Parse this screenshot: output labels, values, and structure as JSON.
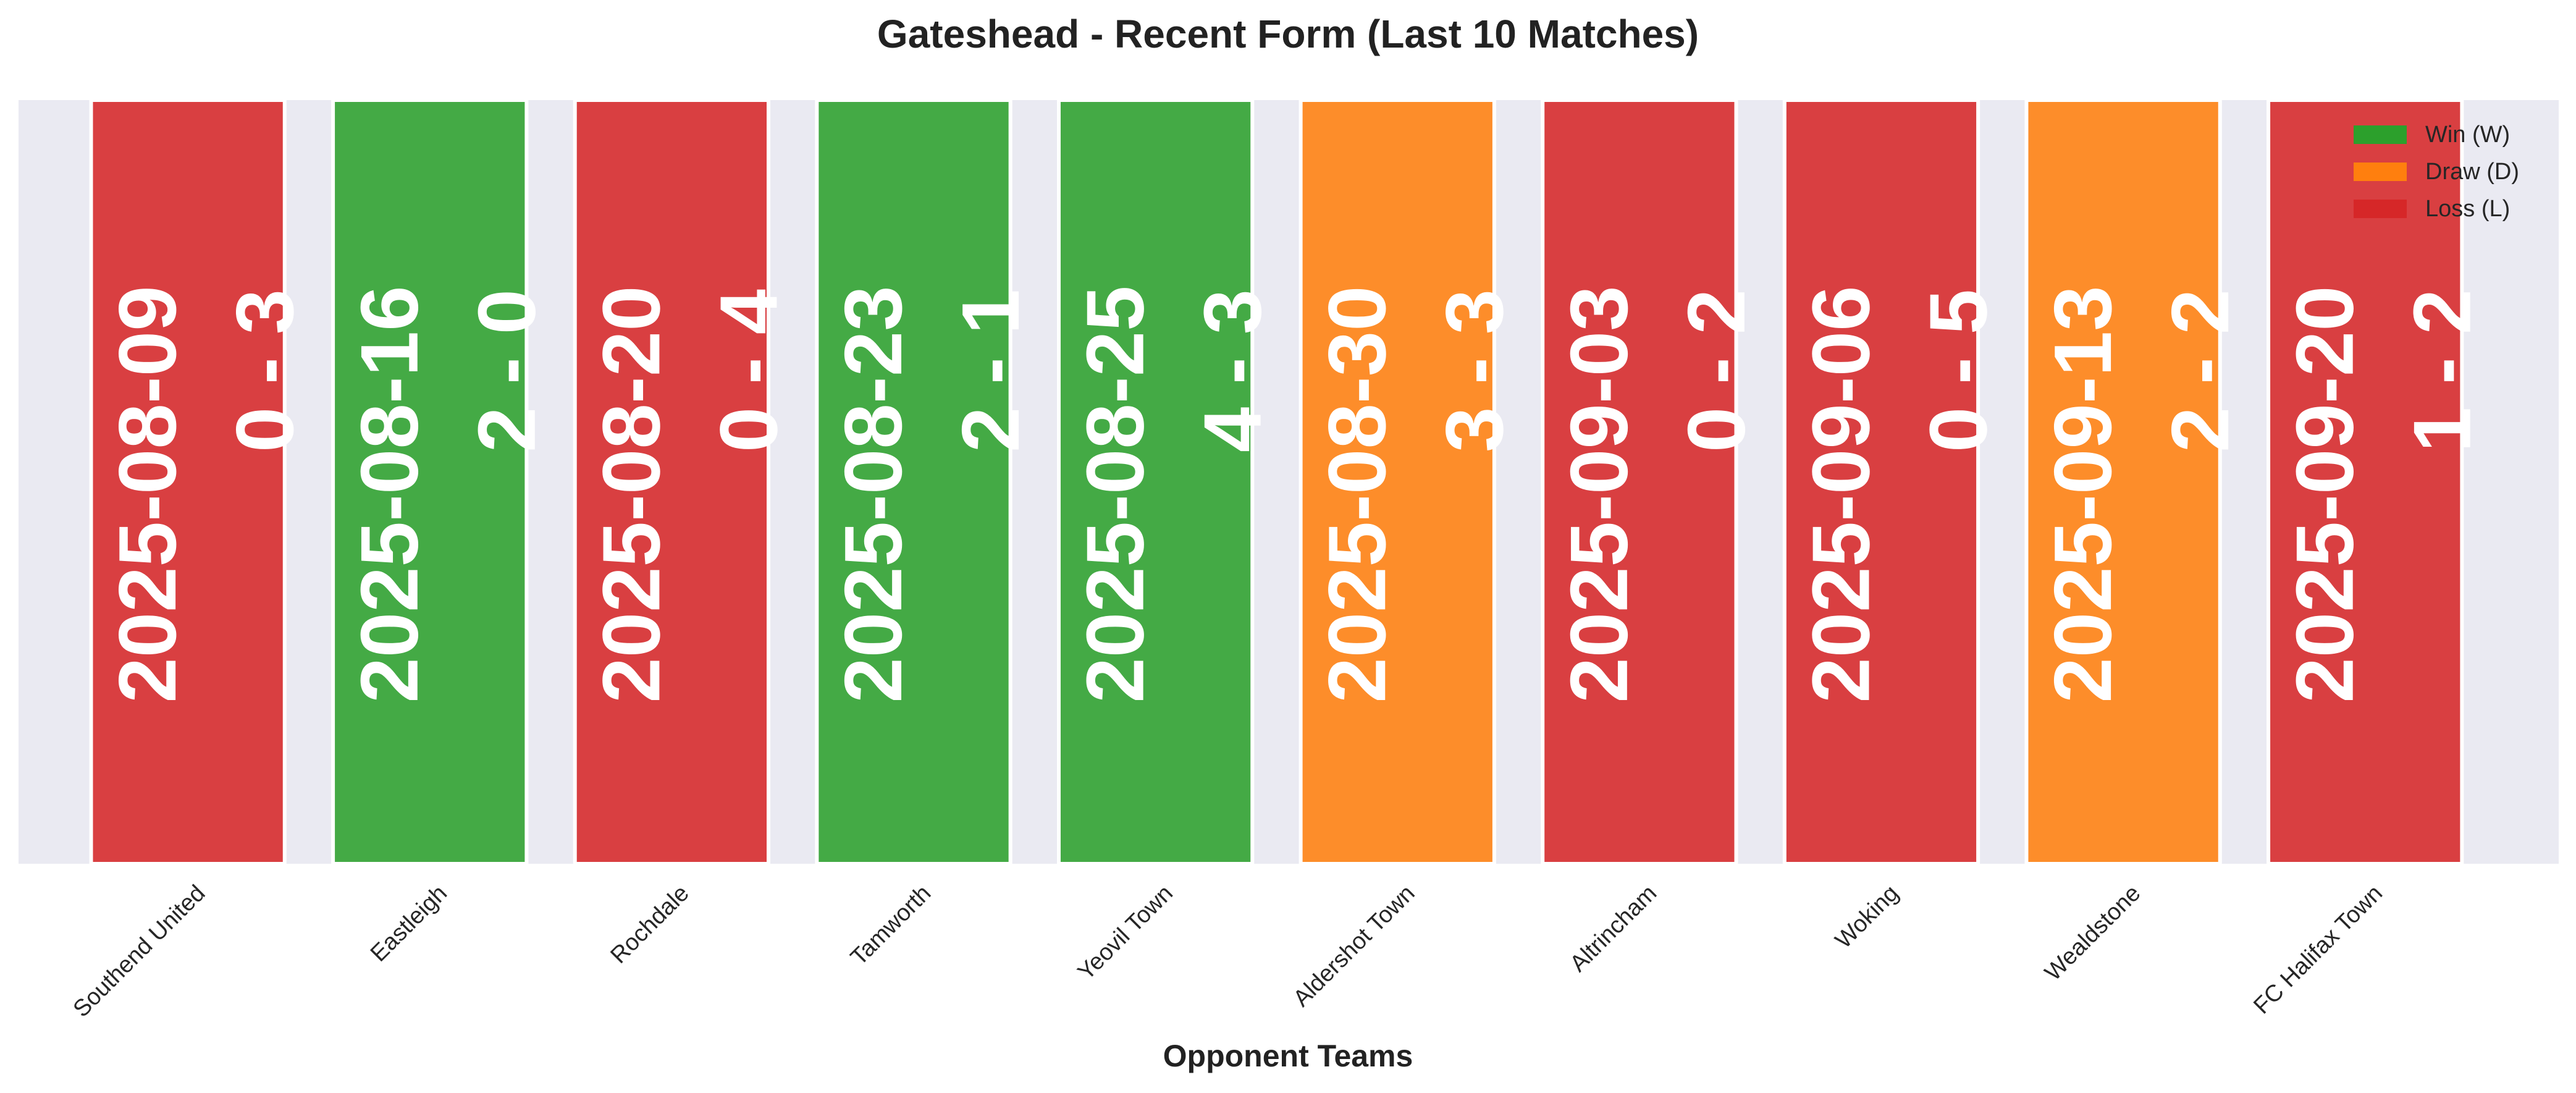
{
  "chart_data": {
    "type": "bar",
    "title": "Gateshead - Recent Form (Last 10 Matches)",
    "xlabel": "Opponent Teams",
    "ylabel": "",
    "grid": false,
    "legend_position": "top-right",
    "categories": [
      "Southend United",
      "Eastleigh",
      "Rochdale",
      "Tamworth",
      "Yeovil Town",
      "Aldershot Town",
      "Altrincham",
      "Woking",
      "Wealdstone",
      "FC Halifax Town"
    ],
    "values": [
      1,
      1,
      1,
      1,
      1,
      1,
      1,
      1,
      1,
      1
    ],
    "results": [
      "L",
      "W",
      "L",
      "W",
      "W",
      "D",
      "L",
      "L",
      "D",
      "L"
    ],
    "dates": [
      "2025-08-09",
      "2025-08-16",
      "2025-08-20",
      "2025-08-23",
      "2025-08-25",
      "2025-08-30",
      "2025-09-03",
      "2025-09-06",
      "2025-09-13",
      "2025-09-20"
    ],
    "scores": [
      "0 - 3",
      "2 - 0",
      "0 - 4",
      "2 - 1",
      "4 - 3",
      "3 - 3",
      "0 - 2",
      "0 - 5",
      "2 - 2",
      "1 - 2"
    ],
    "legend": [
      {
        "key": "W",
        "label": "Win (W)",
        "color": "#2ca02c"
      },
      {
        "key": "D",
        "label": "Draw (D)",
        "color": "#ff7f0e"
      },
      {
        "key": "L",
        "label": "Loss (L)",
        "color": "#d62728"
      }
    ],
    "colors": {
      "W": "#2ca02c",
      "D": "#ff7f0e",
      "L": "#d62728",
      "background": "#eaeaf2"
    }
  }
}
